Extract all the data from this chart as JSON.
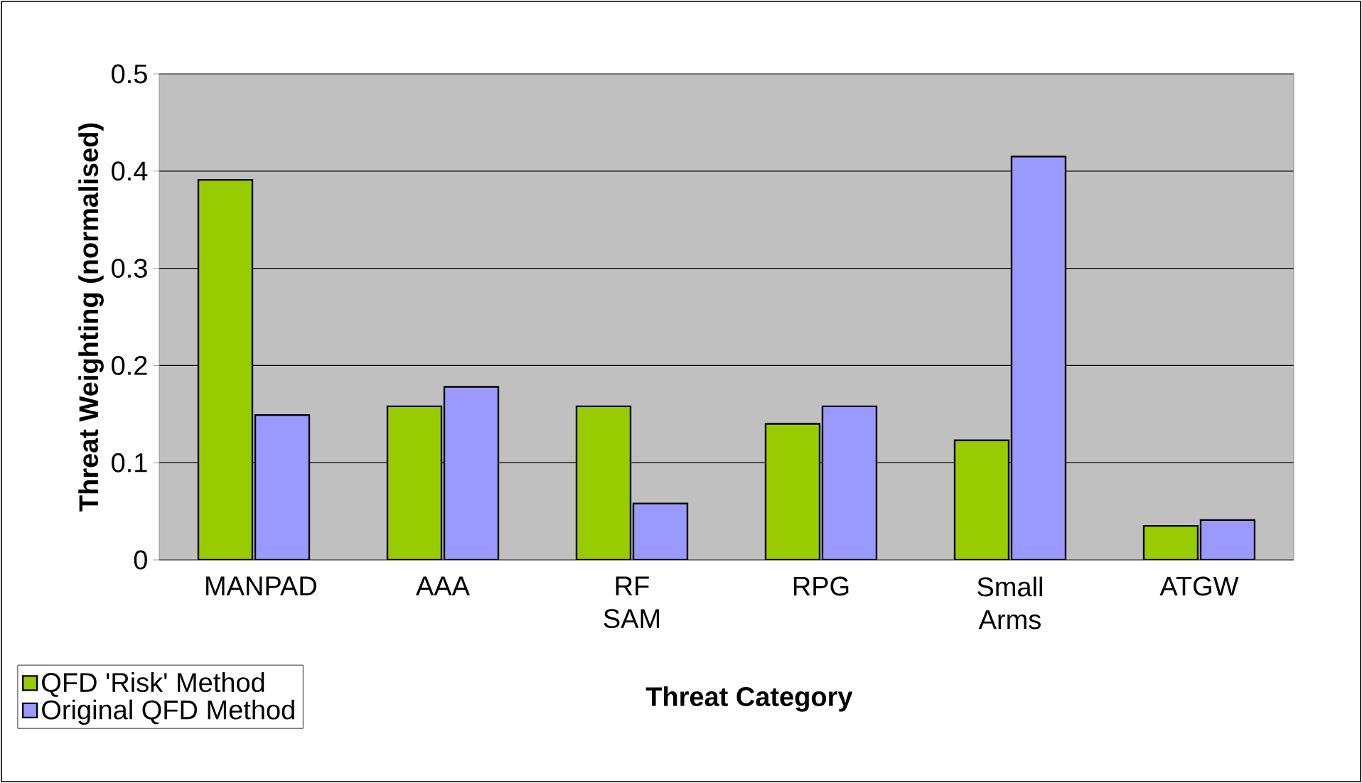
{
  "chart_data": {
    "type": "bar",
    "xlabel": "Threat Category",
    "ylabel": "Threat Weighting (normalised)",
    "categories": [
      "MANPAD",
      "AAA",
      "RF SAM",
      "RPG",
      "Small Arms",
      "ATGW"
    ],
    "series": [
      {
        "name": "QFD 'Risk' Method",
        "color": "#99cc00",
        "values": [
          0.391,
          0.158,
          0.158,
          0.14,
          0.123,
          0.035
        ]
      },
      {
        "name": "Original QFD Method",
        "color": "#9999ff",
        "values": [
          0.149,
          0.178,
          0.058,
          0.158,
          0.415,
          0.041
        ]
      }
    ],
    "ylim": [
      0,
      0.5
    ],
    "yticks": [
      0,
      0.1,
      0.2,
      0.3,
      0.4,
      0.5
    ],
    "grid": "y",
    "legend": "bottom left"
  }
}
